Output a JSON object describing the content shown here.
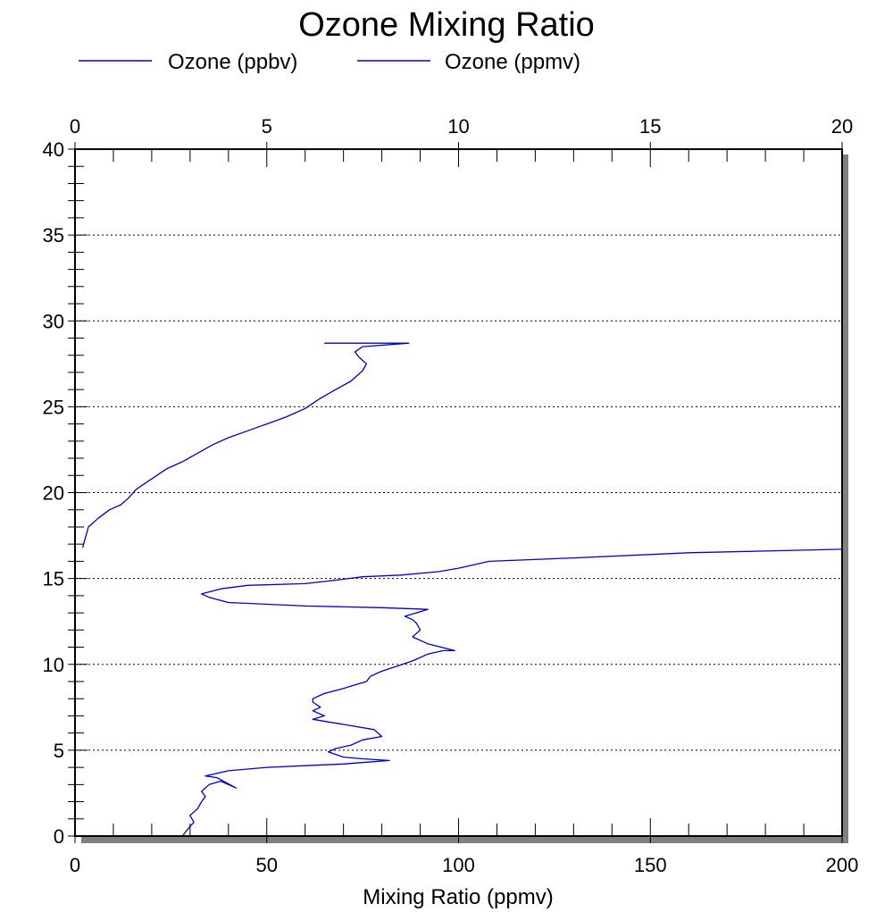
{
  "chart_data": {
    "type": "line",
    "title": "Ozone Mixing Ratio",
    "xlabel": "Mixing Ratio (ppmv)",
    "ylabel": "",
    "legend": {
      "placement": "top-left",
      "entries": [
        "Ozone (ppbv)",
        "Ozone (ppmv)"
      ]
    },
    "x_bottom": {
      "label": "Mixing Ratio (ppmv)",
      "lim": [
        0,
        200
      ],
      "ticks": [
        "0",
        "50",
        "100",
        "150",
        "200"
      ]
    },
    "x_top": {
      "lim": [
        0,
        20
      ],
      "ticks": [
        "0",
        "5",
        "10",
        "15",
        "20"
      ]
    },
    "y": {
      "lim": [
        0,
        40
      ],
      "ticks": [
        "0",
        "5",
        "10",
        "15",
        "20",
        "25",
        "30",
        "35",
        "40"
      ]
    },
    "grid": "horizontal dotted",
    "series": [
      {
        "name": "Ozone (ppbv)",
        "axis": "bottom",
        "color": "#0000cc",
        "x": [
          28,
          29,
          31,
          30,
          32,
          33,
          34,
          33,
          35,
          38,
          42,
          37,
          34,
          36,
          40,
          50,
          60,
          70,
          76,
          82,
          75,
          70,
          66,
          68,
          72,
          75,
          80,
          78,
          70,
          62,
          65,
          62,
          64,
          62,
          62,
          65,
          70,
          73,
          76,
          77,
          80,
          84,
          88,
          90,
          92,
          96,
          99,
          92,
          88,
          90,
          89,
          88,
          86,
          89,
          92,
          80,
          60,
          40,
          35,
          33,
          38,
          45,
          60,
          68,
          75,
          85,
          95,
          100,
          108,
          130,
          160,
          200
        ],
        "y": [
          0.0,
          0.3,
          0.8,
          1.2,
          1.6,
          2.0,
          2.3,
          2.6,
          3.0,
          3.2,
          2.8,
          3.4,
          3.5,
          3.6,
          3.8,
          4.0,
          4.1,
          4.2,
          4.3,
          4.4,
          4.5,
          4.6,
          4.9,
          5.1,
          5.3,
          5.6,
          5.8,
          6.2,
          6.5,
          6.8,
          7.0,
          7.3,
          7.5,
          7.8,
          8.0,
          8.3,
          8.6,
          8.8,
          9.0,
          9.3,
          9.6,
          9.9,
          10.2,
          10.4,
          10.6,
          10.8,
          10.8,
          11.2,
          11.6,
          12.0,
          12.4,
          12.6,
          12.8,
          13.0,
          13.2,
          13.3,
          13.4,
          13.6,
          13.9,
          14.1,
          14.4,
          14.6,
          14.7,
          14.9,
          15.1,
          15.2,
          15.4,
          15.6,
          16.0,
          16.2,
          16.5,
          16.7
        ]
      },
      {
        "name": "Ozone (ppmv)",
        "axis": "top",
        "color": "#0000cc",
        "x": [
          0.2,
          0.25,
          0.35,
          0.6,
          0.9,
          1.2,
          1.4,
          1.6,
          2.0,
          2.4,
          2.8,
          3.2,
          3.6,
          4.0,
          4.5,
          5.0,
          5.5,
          6.0,
          6.4,
          6.8,
          7.2,
          7.5,
          7.6,
          7.4,
          7.3,
          7.5,
          8.7,
          6.5
        ],
        "y": [
          16.8,
          17.2,
          18.0,
          18.5,
          19.0,
          19.3,
          19.7,
          20.2,
          20.8,
          21.4,
          21.8,
          22.3,
          22.8,
          23.2,
          23.6,
          24.0,
          24.4,
          24.9,
          25.5,
          26.0,
          26.5,
          27.1,
          27.5,
          27.9,
          28.2,
          28.5,
          28.7,
          28.7
        ]
      }
    ]
  }
}
